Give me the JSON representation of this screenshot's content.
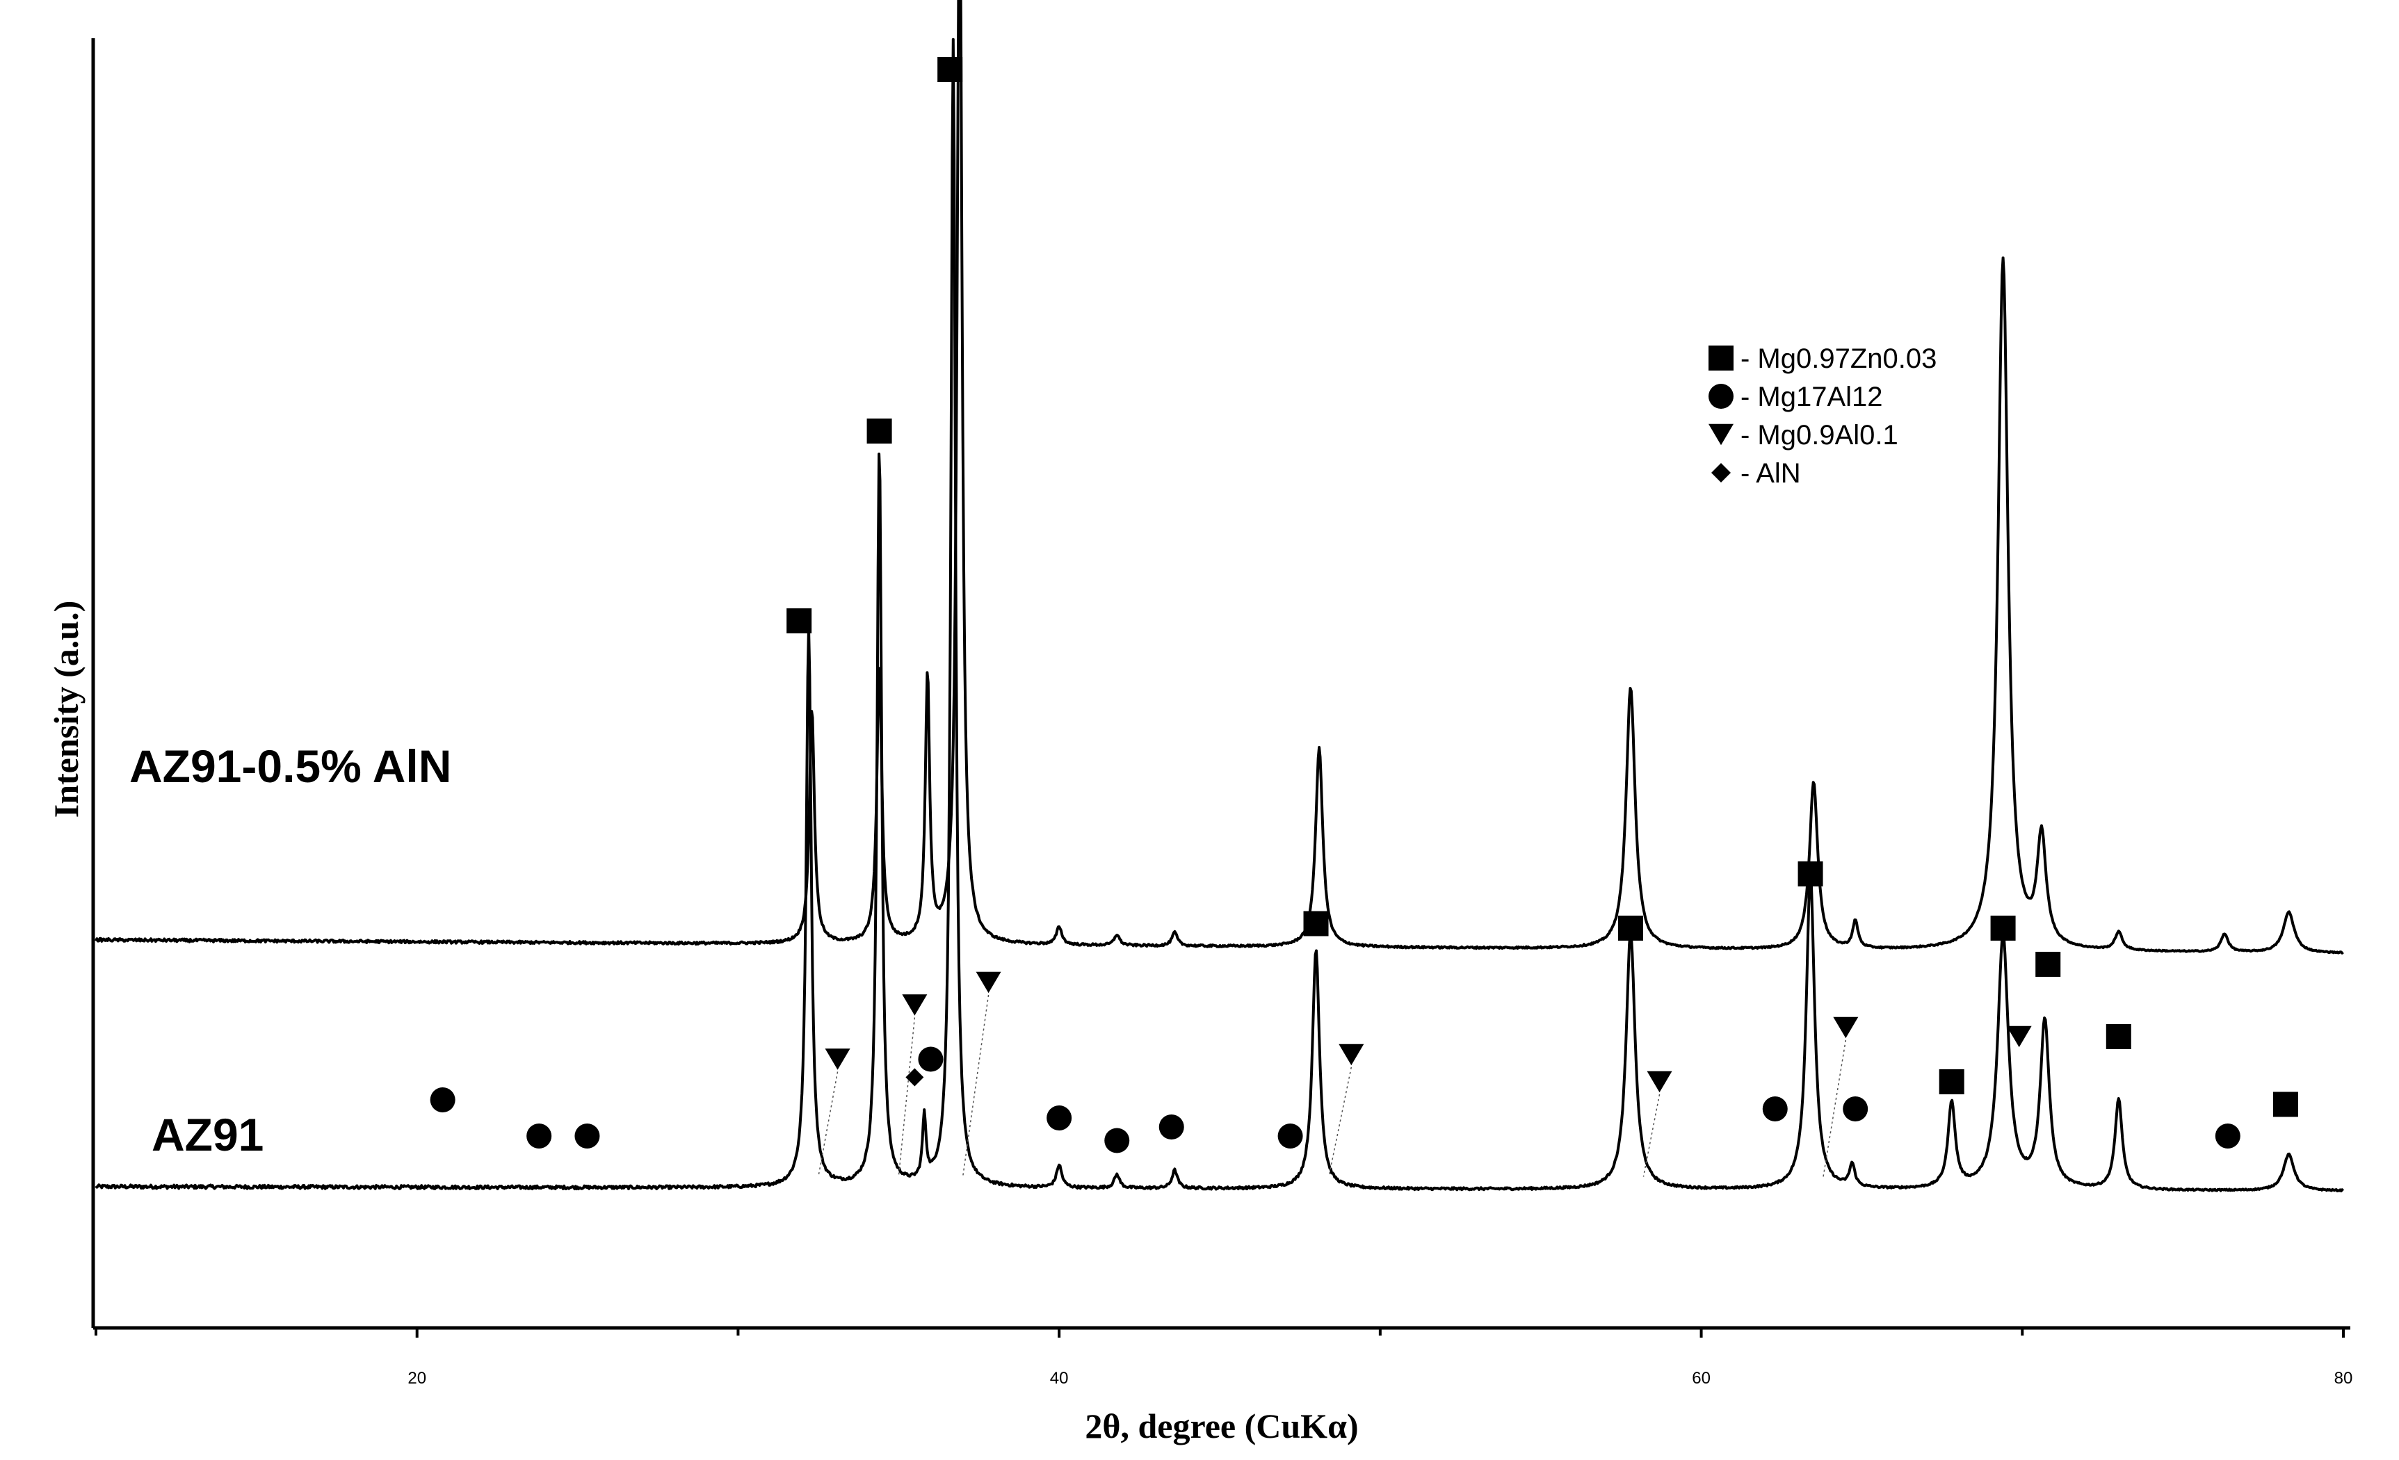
{
  "chart_data": {
    "type": "line",
    "xlabel": "2θ, degree (CuKα)",
    "ylabel": "Intensity (a.u.)",
    "xlim": [
      10,
      80
    ],
    "xticks": [
      20,
      40,
      60,
      80
    ],
    "xticks_minor": [
      10,
      30,
      50,
      70
    ],
    "yticks": [],
    "grid": false,
    "legend_position": "top-right",
    "legend": [
      {
        "symbol": "square",
        "label": "- Mg0.97Zn0.03"
      },
      {
        "symbol": "circle",
        "label": "- Mg17Al12"
      },
      {
        "symbol": "triangle-down",
        "label": "- Mg0.9Al0.1"
      },
      {
        "symbol": "diamond",
        "label": "- AlN"
      }
    ],
    "series": [
      {
        "name": "AZ91-0.5% AlN",
        "baseline": 0.64,
        "baseline_end": 0.59,
        "noise": 0.025,
        "peaks": [
          [
            32.2,
            6.2,
            0.14
          ],
          [
            34.4,
            8.2,
            0.13
          ],
          [
            35.8,
            0.7,
            0.1
          ],
          [
            36.7,
            12.7,
            0.13
          ],
          [
            40.0,
            0.25,
            0.15
          ],
          [
            41.8,
            0.15,
            0.15
          ],
          [
            43.6,
            0.2,
            0.15
          ],
          [
            48.0,
            2.65,
            0.2
          ],
          [
            57.8,
            2.85,
            0.25
          ],
          [
            63.4,
            3.5,
            0.23
          ],
          [
            64.7,
            0.25,
            0.15
          ],
          [
            67.8,
            0.95,
            0.2
          ],
          [
            69.4,
            2.8,
            0.3
          ],
          [
            70.7,
            1.85,
            0.25
          ],
          [
            73.0,
            1.0,
            0.2
          ],
          [
            78.3,
            0.4,
            0.3
          ]
        ]
      },
      {
        "name": "AZ91",
        "baseline": 0.2,
        "baseline_end": 0.05,
        "noise": 0.02,
        "peaks": [
          [
            32.3,
            2.6,
            0.14
          ],
          [
            34.4,
            3.05,
            0.14
          ],
          [
            35.9,
            2.95,
            0.12
          ],
          [
            36.9,
            12.0,
            0.14
          ],
          [
            40.0,
            0.2,
            0.15
          ],
          [
            41.8,
            0.12,
            0.15
          ],
          [
            43.6,
            0.15,
            0.15
          ],
          [
            48.1,
            2.2,
            0.2
          ],
          [
            57.8,
            2.9,
            0.25
          ],
          [
            63.5,
            1.85,
            0.23
          ],
          [
            64.8,
            0.3,
            0.15
          ],
          [
            69.4,
            7.65,
            0.28
          ],
          [
            70.6,
            1.2,
            0.25
          ],
          [
            73.0,
            0.2,
            0.2
          ],
          [
            76.3,
            0.2,
            0.2
          ],
          [
            78.3,
            0.45,
            0.3
          ]
        ]
      }
    ],
    "phase_markers": [
      {
        "symbol": "circle",
        "x": 20.8,
        "y": 1.6
      },
      {
        "symbol": "circle",
        "x": 23.8,
        "y": 1.2
      },
      {
        "symbol": "circle",
        "x": 25.3,
        "y": 1.2
      },
      {
        "symbol": "square",
        "x": 31.9,
        "y": 6.9
      },
      {
        "symbol": "triangle-down",
        "x": 33.1,
        "y": 2.05,
        "x_end": 32.5
      },
      {
        "symbol": "square",
        "x": 34.4,
        "y": 9.0
      },
      {
        "symbol": "triangle-down",
        "x": 35.5,
        "y": 2.65,
        "x_end": 35.0
      },
      {
        "symbol": "circle",
        "x": 36.0,
        "y": 2.05
      },
      {
        "symbol": "diamond",
        "x": 35.5,
        "y": 1.85
      },
      {
        "symbol": "square",
        "x": 36.6,
        "y": 13.0
      },
      {
        "symbol": "triangle-down",
        "x": 37.8,
        "y": 2.9,
        "x_end": 37.0
      },
      {
        "symbol": "circle",
        "x": 40.0,
        "y": 1.4
      },
      {
        "symbol": "circle",
        "x": 41.8,
        "y": 1.15
      },
      {
        "symbol": "circle",
        "x": 43.5,
        "y": 1.3
      },
      {
        "symbol": "circle",
        "x": 47.2,
        "y": 1.2
      },
      {
        "symbol": "square",
        "x": 48.0,
        "y": 3.55
      },
      {
        "symbol": "triangle-down",
        "x": 49.1,
        "y": 2.1,
        "x_end": 48.4
      },
      {
        "symbol": "square",
        "x": 57.8,
        "y": 3.5
      },
      {
        "symbol": "triangle-down",
        "x": 58.7,
        "y": 1.8,
        "x_end": 58.2
      },
      {
        "symbol": "circle",
        "x": 62.3,
        "y": 1.5
      },
      {
        "symbol": "square",
        "x": 63.4,
        "y": 4.1
      },
      {
        "symbol": "triangle-down",
        "x": 64.5,
        "y": 2.4,
        "x_end": 63.8
      },
      {
        "symbol": "circle",
        "x": 64.8,
        "y": 1.5
      },
      {
        "symbol": "square",
        "x": 67.8,
        "y": 1.8
      },
      {
        "symbol": "square",
        "x": 69.4,
        "y": 3.5
      },
      {
        "symbol": "triangle-down",
        "x": 69.9,
        "y": 2.3
      },
      {
        "symbol": "square",
        "x": 70.8,
        "y": 3.1
      },
      {
        "symbol": "square",
        "x": 73.0,
        "y": 2.3
      },
      {
        "symbol": "circle",
        "x": 76.4,
        "y": 1.2
      },
      {
        "symbol": "square",
        "x": 78.2,
        "y": 1.55
      }
    ]
  }
}
